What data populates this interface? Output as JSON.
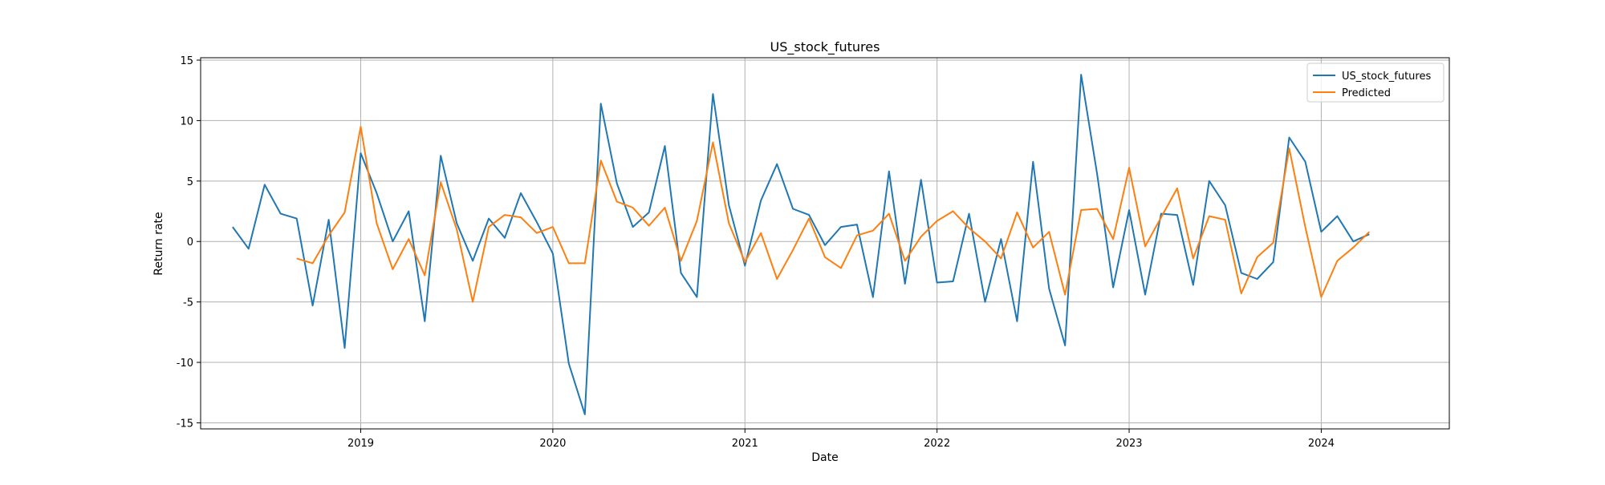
{
  "chart_data": {
    "type": "line",
    "title": "US_stock_futures",
    "xlabel": "Date",
    "ylabel": "Return rate",
    "xlim": [
      "2018-03-01",
      "2024-09-01"
    ],
    "ylim": [
      -15.5,
      15.2
    ],
    "xticks": [
      "2019",
      "2020",
      "2021",
      "2022",
      "2023",
      "2024"
    ],
    "yticks": [
      15,
      10,
      5,
      0,
      -5,
      -10,
      -15
    ],
    "grid": true,
    "legend_position": "top-right",
    "series": [
      {
        "name": "US_stock_futures",
        "color": "#1f77b4",
        "x": [
          "2018-05",
          "2018-06",
          "2018-07",
          "2018-08",
          "2018-09",
          "2018-10",
          "2018-11",
          "2018-12",
          "2019-01",
          "2019-02",
          "2019-03",
          "2019-04",
          "2019-05",
          "2019-06",
          "2019-07",
          "2019-08",
          "2019-09",
          "2019-10",
          "2019-11",
          "2019-12",
          "2020-01",
          "2020-02",
          "2020-03",
          "2020-04",
          "2020-05",
          "2020-06",
          "2020-07",
          "2020-08",
          "2020-09",
          "2020-10",
          "2020-11",
          "2020-12",
          "2021-01",
          "2021-02",
          "2021-03",
          "2021-04",
          "2021-05",
          "2021-06",
          "2021-07",
          "2021-08",
          "2021-09",
          "2021-10",
          "2021-11",
          "2021-12",
          "2022-01",
          "2022-02",
          "2022-03",
          "2022-04",
          "2022-05",
          "2022-06",
          "2022-07",
          "2022-08",
          "2022-09",
          "2022-10",
          "2022-11",
          "2022-12",
          "2023-01",
          "2023-02",
          "2023-03",
          "2023-04",
          "2023-05",
          "2023-06",
          "2023-07",
          "2023-08",
          "2023-09",
          "2023-10",
          "2023-11",
          "2023-12",
          "2024-01",
          "2024-02",
          "2024-03",
          "2024-04"
        ],
        "y": [
          1.2,
          -0.6,
          4.7,
          2.3,
          1.9,
          -5.3,
          1.8,
          -8.8,
          7.3,
          4.0,
          0.0,
          2.5,
          -6.6,
          7.1,
          1.5,
          -1.6,
          1.9,
          0.3,
          4.0,
          1.6,
          -1.0,
          -10.1,
          -14.3,
          11.4,
          4.8,
          1.2,
          2.4,
          7.9,
          -2.6,
          -4.6,
          12.2,
          3.0,
          -2.0,
          3.4,
          6.4,
          2.7,
          2.2,
          -0.3,
          1.2,
          1.4,
          -4.6,
          5.8,
          -3.5,
          5.1,
          -3.4,
          -3.3,
          2.3,
          -5.0,
          0.2,
          -6.6,
          6.6,
          -3.9,
          -8.6,
          13.8,
          5.6,
          -3.8,
          2.6,
          -4.4,
          2.3,
          2.2,
          -3.6,
          5.0,
          3.0,
          -2.6,
          -3.1,
          -1.7,
          8.6,
          6.6,
          0.8,
          2.1,
          0.0,
          0.6
        ]
      },
      {
        "name": "Predicted",
        "color": "#ff7f0e",
        "x": [
          "2018-09",
          "2018-10",
          "2018-11",
          "2018-12",
          "2019-01",
          "2019-02",
          "2019-03",
          "2019-04",
          "2019-05",
          "2019-06",
          "2019-07",
          "2019-08",
          "2019-09",
          "2019-10",
          "2019-11",
          "2019-12",
          "2020-01",
          "2020-02",
          "2020-03",
          "2020-04",
          "2020-05",
          "2020-06",
          "2020-07",
          "2020-08",
          "2020-09",
          "2020-10",
          "2020-11",
          "2020-12",
          "2021-01",
          "2021-02",
          "2021-03",
          "2021-04",
          "2021-05",
          "2021-06",
          "2021-07",
          "2021-08",
          "2021-09",
          "2021-10",
          "2021-11",
          "2021-12",
          "2022-01",
          "2022-02",
          "2022-03",
          "2022-04",
          "2022-05",
          "2022-06",
          "2022-07",
          "2022-08",
          "2022-09",
          "2022-10",
          "2022-11",
          "2022-12",
          "2023-01",
          "2023-02",
          "2023-03",
          "2023-04",
          "2023-05",
          "2023-06",
          "2023-07",
          "2023-08",
          "2023-09",
          "2023-10",
          "2023-11",
          "2023-12",
          "2024-01",
          "2024-02",
          "2024-03",
          "2024-04"
        ],
        "y": [
          -1.4,
          -1.8,
          0.5,
          2.4,
          9.5,
          1.5,
          -2.3,
          0.2,
          -2.8,
          4.9,
          1.0,
          -5.0,
          1.2,
          2.2,
          2.0,
          0.7,
          1.2,
          -1.8,
          -1.8,
          6.7,
          3.3,
          2.8,
          1.3,
          2.8,
          -1.6,
          1.7,
          8.2,
          1.5,
          -1.7,
          0.7,
          -3.1,
          -0.7,
          1.9,
          -1.3,
          -2.2,
          0.5,
          0.9,
          2.3,
          -1.6,
          0.4,
          1.7,
          2.5,
          1.1,
          0.0,
          -1.4,
          2.4,
          -0.5,
          0.8,
          -4.4,
          2.6,
          2.7,
          0.2,
          6.1,
          -0.4,
          2.0,
          4.4,
          -1.4,
          2.1,
          1.8,
          -4.3,
          -1.3,
          -0.1,
          7.7,
          1.2,
          -4.6,
          -1.6,
          -0.5,
          0.8
        ]
      }
    ]
  }
}
